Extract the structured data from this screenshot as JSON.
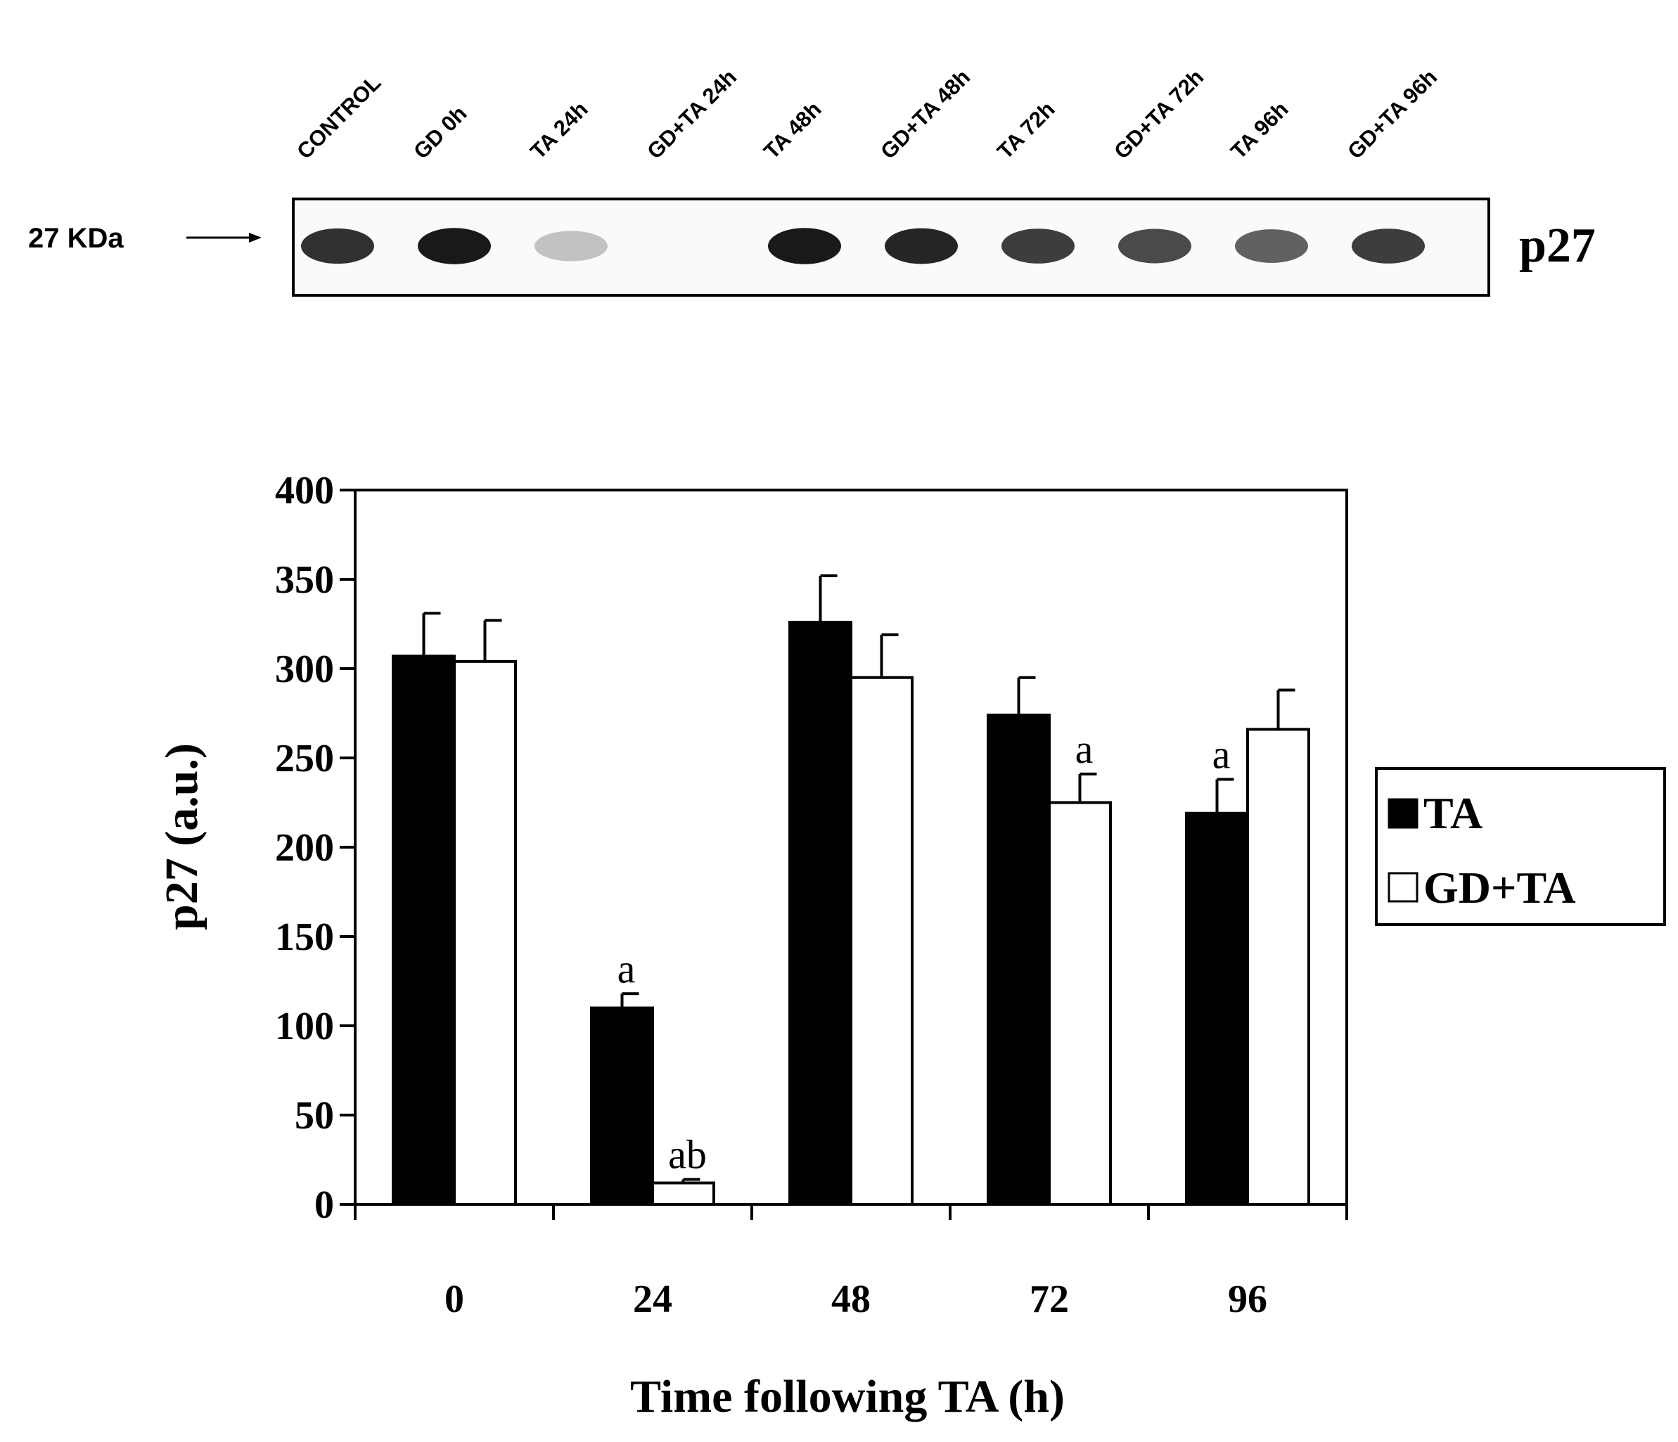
{
  "blot": {
    "lanes": [
      "CONTROL",
      "GD 0h",
      "TA 24h",
      "GD+TA 24h",
      "TA 48h",
      "GD+TA 48h",
      "TA 72h",
      "GD+TA 72h",
      "TA 96h",
      "GD+TA 96h"
    ],
    "band_intensity": [
      0.85,
      0.95,
      0.25,
      0.0,
      0.95,
      0.9,
      0.8,
      0.75,
      0.65,
      0.8
    ],
    "marker_label": "27 KDa",
    "protein_label": "p27"
  },
  "chart_data": {
    "type": "bar",
    "categories": [
      "0",
      "24",
      "48",
      "72",
      "96"
    ],
    "series": [
      {
        "name": "TA",
        "color": "#000000",
        "values": [
          307,
          110,
          326,
          274,
          219
        ],
        "errors": [
          24,
          8,
          26,
          21,
          19
        ],
        "annotations": [
          "",
          "a",
          "",
          "",
          "a"
        ]
      },
      {
        "name": "GD+TA",
        "color": "#ffffff",
        "values": [
          304,
          12,
          295,
          225,
          266
        ],
        "errors": [
          23,
          2,
          24,
          16,
          22
        ],
        "annotations": [
          "",
          "ab",
          "",
          "a",
          ""
        ]
      }
    ],
    "xlabel": "Time following TA (h)",
    "ylabel": "p27 (a.u.)",
    "ylim": [
      0,
      400
    ],
    "yticks": [
      "0",
      "50",
      "100",
      "150",
      "200",
      "250",
      "300",
      "350",
      "400"
    ],
    "grid": false,
    "legend": "right"
  }
}
